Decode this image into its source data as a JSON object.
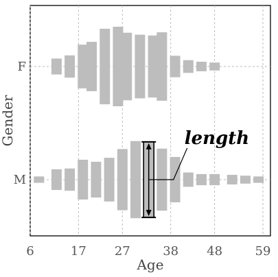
{
  "chart_data": {
    "type": "bar",
    "xlabel": "Age",
    "ylabel": "Gender",
    "xlim": [
      6,
      59
    ],
    "x_ticks": [
      "6",
      "17",
      "27",
      "38",
      "48",
      "59"
    ],
    "categories": [
      "F",
      "M"
    ],
    "grid": "dotted",
    "annotation": {
      "text": "length",
      "target_category": "M",
      "target_age": 33
    },
    "series": [
      {
        "category": "F",
        "bins": [
          {
            "age": 12,
            "length": 0.2
          },
          {
            "age": 15,
            "length": 0.28
          },
          {
            "age": 18,
            "length": 0.55
          },
          {
            "age": 20,
            "length": 0.62
          },
          {
            "age": 23,
            "length": 0.95
          },
          {
            "age": 26,
            "length": 1.0
          },
          {
            "age": 28,
            "length": 0.85
          },
          {
            "age": 31,
            "length": 0.8
          },
          {
            "age": 34,
            "length": 0.78
          },
          {
            "age": 36,
            "length": 0.86
          },
          {
            "age": 39,
            "length": 0.27
          },
          {
            "age": 42,
            "length": 0.16
          },
          {
            "age": 45,
            "length": 0.12
          },
          {
            "age": 48,
            "length": 0.1
          }
        ]
      },
      {
        "category": "M",
        "bins": [
          {
            "age": 8,
            "length": 0.08
          },
          {
            "age": 12,
            "length": 0.26
          },
          {
            "age": 15,
            "length": 0.28
          },
          {
            "age": 18,
            "length": 0.5
          },
          {
            "age": 21,
            "length": 0.45
          },
          {
            "age": 24,
            "length": 0.55
          },
          {
            "age": 27,
            "length": 0.77
          },
          {
            "age": 30,
            "length": 0.97
          },
          {
            "age": 33,
            "length": 0.95
          },
          {
            "age": 36,
            "length": 0.78
          },
          {
            "age": 39,
            "length": 0.57
          },
          {
            "age": 42,
            "length": 0.18
          },
          {
            "age": 45,
            "length": 0.14
          },
          {
            "age": 48,
            "length": 0.14
          },
          {
            "age": 52,
            "length": 0.12
          },
          {
            "age": 55,
            "length": 0.1
          },
          {
            "age": 58,
            "length": 0.08
          }
        ]
      }
    ],
    "colors": {
      "bar": "#bdbdbd",
      "grid": "#bbbbbb",
      "frame": "#000000",
      "text": "#555555"
    }
  }
}
